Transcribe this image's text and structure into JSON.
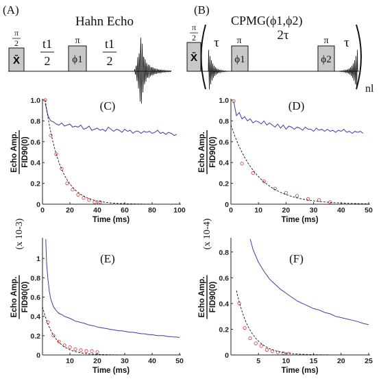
{
  "sequences": {
    "a": {
      "label": "(A)",
      "title": "Hahn Echo",
      "pulse1": {
        "top": "π",
        "bottom": "2",
        "box": "X̄"
      },
      "delay1": {
        "top": "t1",
        "bottom": "2"
      },
      "pulse2": {
        "top": "π",
        "box": "ϕ1"
      },
      "delay2": {
        "top": "t1",
        "bottom": "2"
      }
    },
    "b": {
      "label": "(B)",
      "title": "CPMG(ϕ1,ϕ2)",
      "pulse1": {
        "top": "π",
        "bottom": "2",
        "box": "X̄"
      },
      "tau1": "τ",
      "pulse2": {
        "top": "π",
        "box": "ϕ1"
      },
      "two_tau": "2τ",
      "pulse3": {
        "top": "π",
        "box": "ϕ2"
      },
      "tau2": "τ",
      "repeat": "nl"
    }
  },
  "chart_data": [
    {
      "id": "C",
      "label": "(C)",
      "type": "line",
      "xlabel": "Time (ms)",
      "ylabel_top": "Echo Amp.",
      "ylabel_bottom": "FID90(0)",
      "scale_note": "",
      "xlim": [
        0,
        100
      ],
      "ylim": [
        0,
        1.0
      ],
      "xticks": [
        0,
        20,
        40,
        60,
        80,
        100
      ],
      "yticks": [
        0,
        0.2,
        0.4,
        0.6,
        0.8,
        1.0
      ],
      "ytick_labels": [
        "0",
        "0.2",
        "0.4",
        "0.6",
        "0.8",
        "1.0"
      ],
      "series": [
        {
          "style": "blue-line",
          "color": "#3a3ab0",
          "x": [
            2,
            4,
            6,
            8,
            10,
            12,
            14,
            16,
            18,
            20,
            22,
            24,
            26,
            28,
            30,
            32,
            34,
            36,
            38,
            40,
            42,
            44,
            46,
            48,
            50,
            52,
            54,
            56,
            58,
            60,
            62,
            64,
            66,
            68,
            70,
            72,
            74,
            76,
            78,
            80,
            82,
            84,
            86,
            88,
            90,
            92,
            94,
            96,
            98
          ],
          "y": [
            0.97,
            0.85,
            0.8,
            0.79,
            0.77,
            0.76,
            0.78,
            0.75,
            0.76,
            0.77,
            0.74,
            0.75,
            0.74,
            0.76,
            0.72,
            0.73,
            0.75,
            0.71,
            0.72,
            0.73,
            0.71,
            0.72,
            0.7,
            0.74,
            0.72,
            0.7,
            0.72,
            0.71,
            0.69,
            0.72,
            0.7,
            0.71,
            0.68,
            0.7,
            0.7,
            0.68,
            0.7,
            0.69,
            0.7,
            0.68,
            0.69,
            0.71,
            0.68,
            0.69,
            0.67,
            0.69,
            0.68,
            0.66,
            0.67
          ]
        },
        {
          "style": "red-circles",
          "color": "#e03030",
          "x": [
            2,
            6,
            10,
            14,
            18,
            22,
            26,
            30,
            34,
            38,
            42
          ],
          "y": [
            1.0,
            0.66,
            0.48,
            0.34,
            0.2,
            0.14,
            0.09,
            0.06,
            0.04,
            0.02,
            0.02
          ]
        },
        {
          "style": "black-dashed",
          "color": "#111111",
          "fit": {
            "a": 1.0,
            "tau": 11.0,
            "x0": 2,
            "c": 0
          }
        }
      ]
    },
    {
      "id": "D",
      "label": "(D)",
      "type": "line",
      "xlabel": "Time (ms)",
      "ylabel_top": "Echo Amp.",
      "ylabel_bottom": "FID90(0)",
      "scale_note": "",
      "xlim": [
        0,
        50
      ],
      "ylim": [
        0,
        1.0
      ],
      "xticks": [
        0,
        10,
        20,
        30,
        40,
        50
      ],
      "yticks": [
        0,
        0.2,
        0.4,
        0.6,
        0.8,
        1.0
      ],
      "ytick_labels": [
        "0",
        "0.2",
        "0.4",
        "0.6",
        "0.8",
        "1.0"
      ],
      "series": [
        {
          "style": "blue-line",
          "color": "#3a3ab0",
          "x": [
            1,
            2,
            3,
            4,
            5,
            6,
            7,
            8,
            9,
            10,
            11,
            12,
            13,
            14,
            15,
            16,
            17,
            18,
            19,
            20,
            21,
            22,
            23,
            24,
            25,
            26,
            27,
            28,
            29,
            30,
            31,
            32,
            33,
            34,
            35,
            36,
            37,
            38,
            39,
            40,
            41,
            42,
            43,
            44,
            45,
            46,
            47,
            48
          ],
          "y": [
            0.99,
            0.85,
            0.88,
            0.82,
            0.84,
            0.8,
            0.82,
            0.78,
            0.8,
            0.79,
            0.77,
            0.8,
            0.76,
            0.78,
            0.76,
            0.74,
            0.77,
            0.73,
            0.76,
            0.72,
            0.75,
            0.74,
            0.72,
            0.74,
            0.73,
            0.71,
            0.74,
            0.72,
            0.72,
            0.7,
            0.73,
            0.71,
            0.72,
            0.7,
            0.72,
            0.7,
            0.71,
            0.69,
            0.71,
            0.7,
            0.72,
            0.69,
            0.7,
            0.68,
            0.7,
            0.69,
            0.7,
            0.68
          ]
        },
        {
          "style": "red-circles",
          "color": "#e03030",
          "x": [
            1,
            4,
            8,
            12,
            16,
            20,
            24,
            28,
            32,
            36
          ],
          "y": [
            0.99,
            0.39,
            0.3,
            0.22,
            0.15,
            0.11,
            0.08,
            0.05,
            0.04,
            0.02
          ]
        },
        {
          "style": "black-dashed",
          "color": "#111111",
          "fit": {
            "a": 0.76,
            "tau": 9.5,
            "x0": 0,
            "c": 0
          }
        }
      ]
    },
    {
      "id": "E",
      "label": "(E)",
      "type": "line",
      "xlabel": "Time (ms)",
      "ylabel_top": "Echo Amp.",
      "ylabel_bottom": "FID90(0)",
      "scale_note": "(x 10-3)",
      "xlim": [
        0,
        50
      ],
      "ylim": [
        0,
        1.2
      ],
      "xticks": [
        10,
        20,
        30,
        40,
        50
      ],
      "yticks": [
        0,
        0.2,
        0.4,
        0.6,
        0.8,
        1.0
      ],
      "ytick_labels": [
        "0",
        "0.2",
        "0.4",
        "0.6",
        "0.8",
        "1"
      ],
      "series": [
        {
          "style": "blue-line",
          "color": "#3a3ab0",
          "x": [
            1.2,
            1.5,
            2,
            2.5,
            3,
            4,
            5,
            6,
            7,
            8,
            9,
            10,
            11,
            12,
            13,
            14,
            15,
            16,
            17,
            18,
            19,
            20,
            21,
            22,
            23,
            24,
            25,
            26,
            27,
            28,
            29,
            30,
            31,
            32,
            33,
            34,
            35,
            36,
            37,
            38,
            39,
            40,
            41,
            42,
            43,
            44,
            45,
            46,
            47,
            48,
            49,
            50
          ],
          "y": [
            1.2,
            0.95,
            0.78,
            0.66,
            0.58,
            0.5,
            0.46,
            0.43,
            0.42,
            0.4,
            0.39,
            0.38,
            0.365,
            0.35,
            0.345,
            0.335,
            0.33,
            0.32,
            0.31,
            0.305,
            0.3,
            0.29,
            0.285,
            0.28,
            0.275,
            0.27,
            0.265,
            0.26,
            0.255,
            0.25,
            0.25,
            0.245,
            0.24,
            0.235,
            0.235,
            0.23,
            0.225,
            0.22,
            0.22,
            0.215,
            0.21,
            0.21,
            0.205,
            0.2,
            0.2,
            0.2,
            0.195,
            0.19,
            0.19,
            0.185,
            0.185,
            0.18
          ]
        },
        {
          "style": "red-circles",
          "color": "#e03030",
          "x": [
            2,
            4,
            6,
            8,
            10,
            12,
            14,
            16,
            18,
            20
          ],
          "y": [
            0.34,
            0.2,
            0.14,
            0.1,
            0.08,
            0.06,
            0.05,
            0.04,
            0.04,
            0.03
          ]
        },
        {
          "style": "black-dashed",
          "color": "#111111",
          "fit": {
            "a": 0.5,
            "tau": 4.5,
            "x0": 0,
            "c": 0
          }
        }
      ]
    },
    {
      "id": "F",
      "label": "(F)",
      "type": "line",
      "xlabel": "Time (ms)",
      "ylabel_top": "Echo Amp.",
      "ylabel_bottom": "FID90(0)",
      "scale_note": "(x 10-4)",
      "xlim": [
        0,
        25
      ],
      "ylim": [
        0,
        0.9
      ],
      "xticks": [
        5,
        10,
        15,
        20,
        25
      ],
      "yticks": [
        0,
        0.2,
        0.4,
        0.6,
        0.8
      ],
      "ytick_labels": [
        "0",
        "0.2",
        "0.4",
        "0.6",
        "0.8"
      ],
      "series": [
        {
          "style": "blue-line",
          "color": "#3a3ab0",
          "x": [
            3.5,
            4,
            5,
            6,
            7,
            8,
            9,
            10,
            11,
            12,
            13,
            14,
            15,
            16,
            17,
            18,
            19,
            20,
            21,
            22,
            23,
            24,
            25
          ],
          "y": [
            0.9,
            0.82,
            0.72,
            0.65,
            0.59,
            0.55,
            0.51,
            0.48,
            0.45,
            0.42,
            0.4,
            0.38,
            0.36,
            0.35,
            0.33,
            0.32,
            0.3,
            0.29,
            0.28,
            0.27,
            0.26,
            0.245,
            0.235
          ]
        },
        {
          "style": "red-circles",
          "color": "#e03030",
          "x": [
            1.5,
            2.5,
            3.5,
            4.5,
            5.5,
            6.5,
            7.5,
            8.5,
            9.5,
            10.5
          ],
          "y": [
            0.4,
            0.21,
            0.13,
            0.09,
            0.07,
            0.04,
            0.03,
            0.02,
            0.015,
            0.01
          ]
        },
        {
          "style": "black-dashed",
          "color": "#111111",
          "fit": {
            "a": 0.5,
            "tau": 2.6,
            "x0": 1,
            "c": 0
          }
        }
      ]
    }
  ]
}
